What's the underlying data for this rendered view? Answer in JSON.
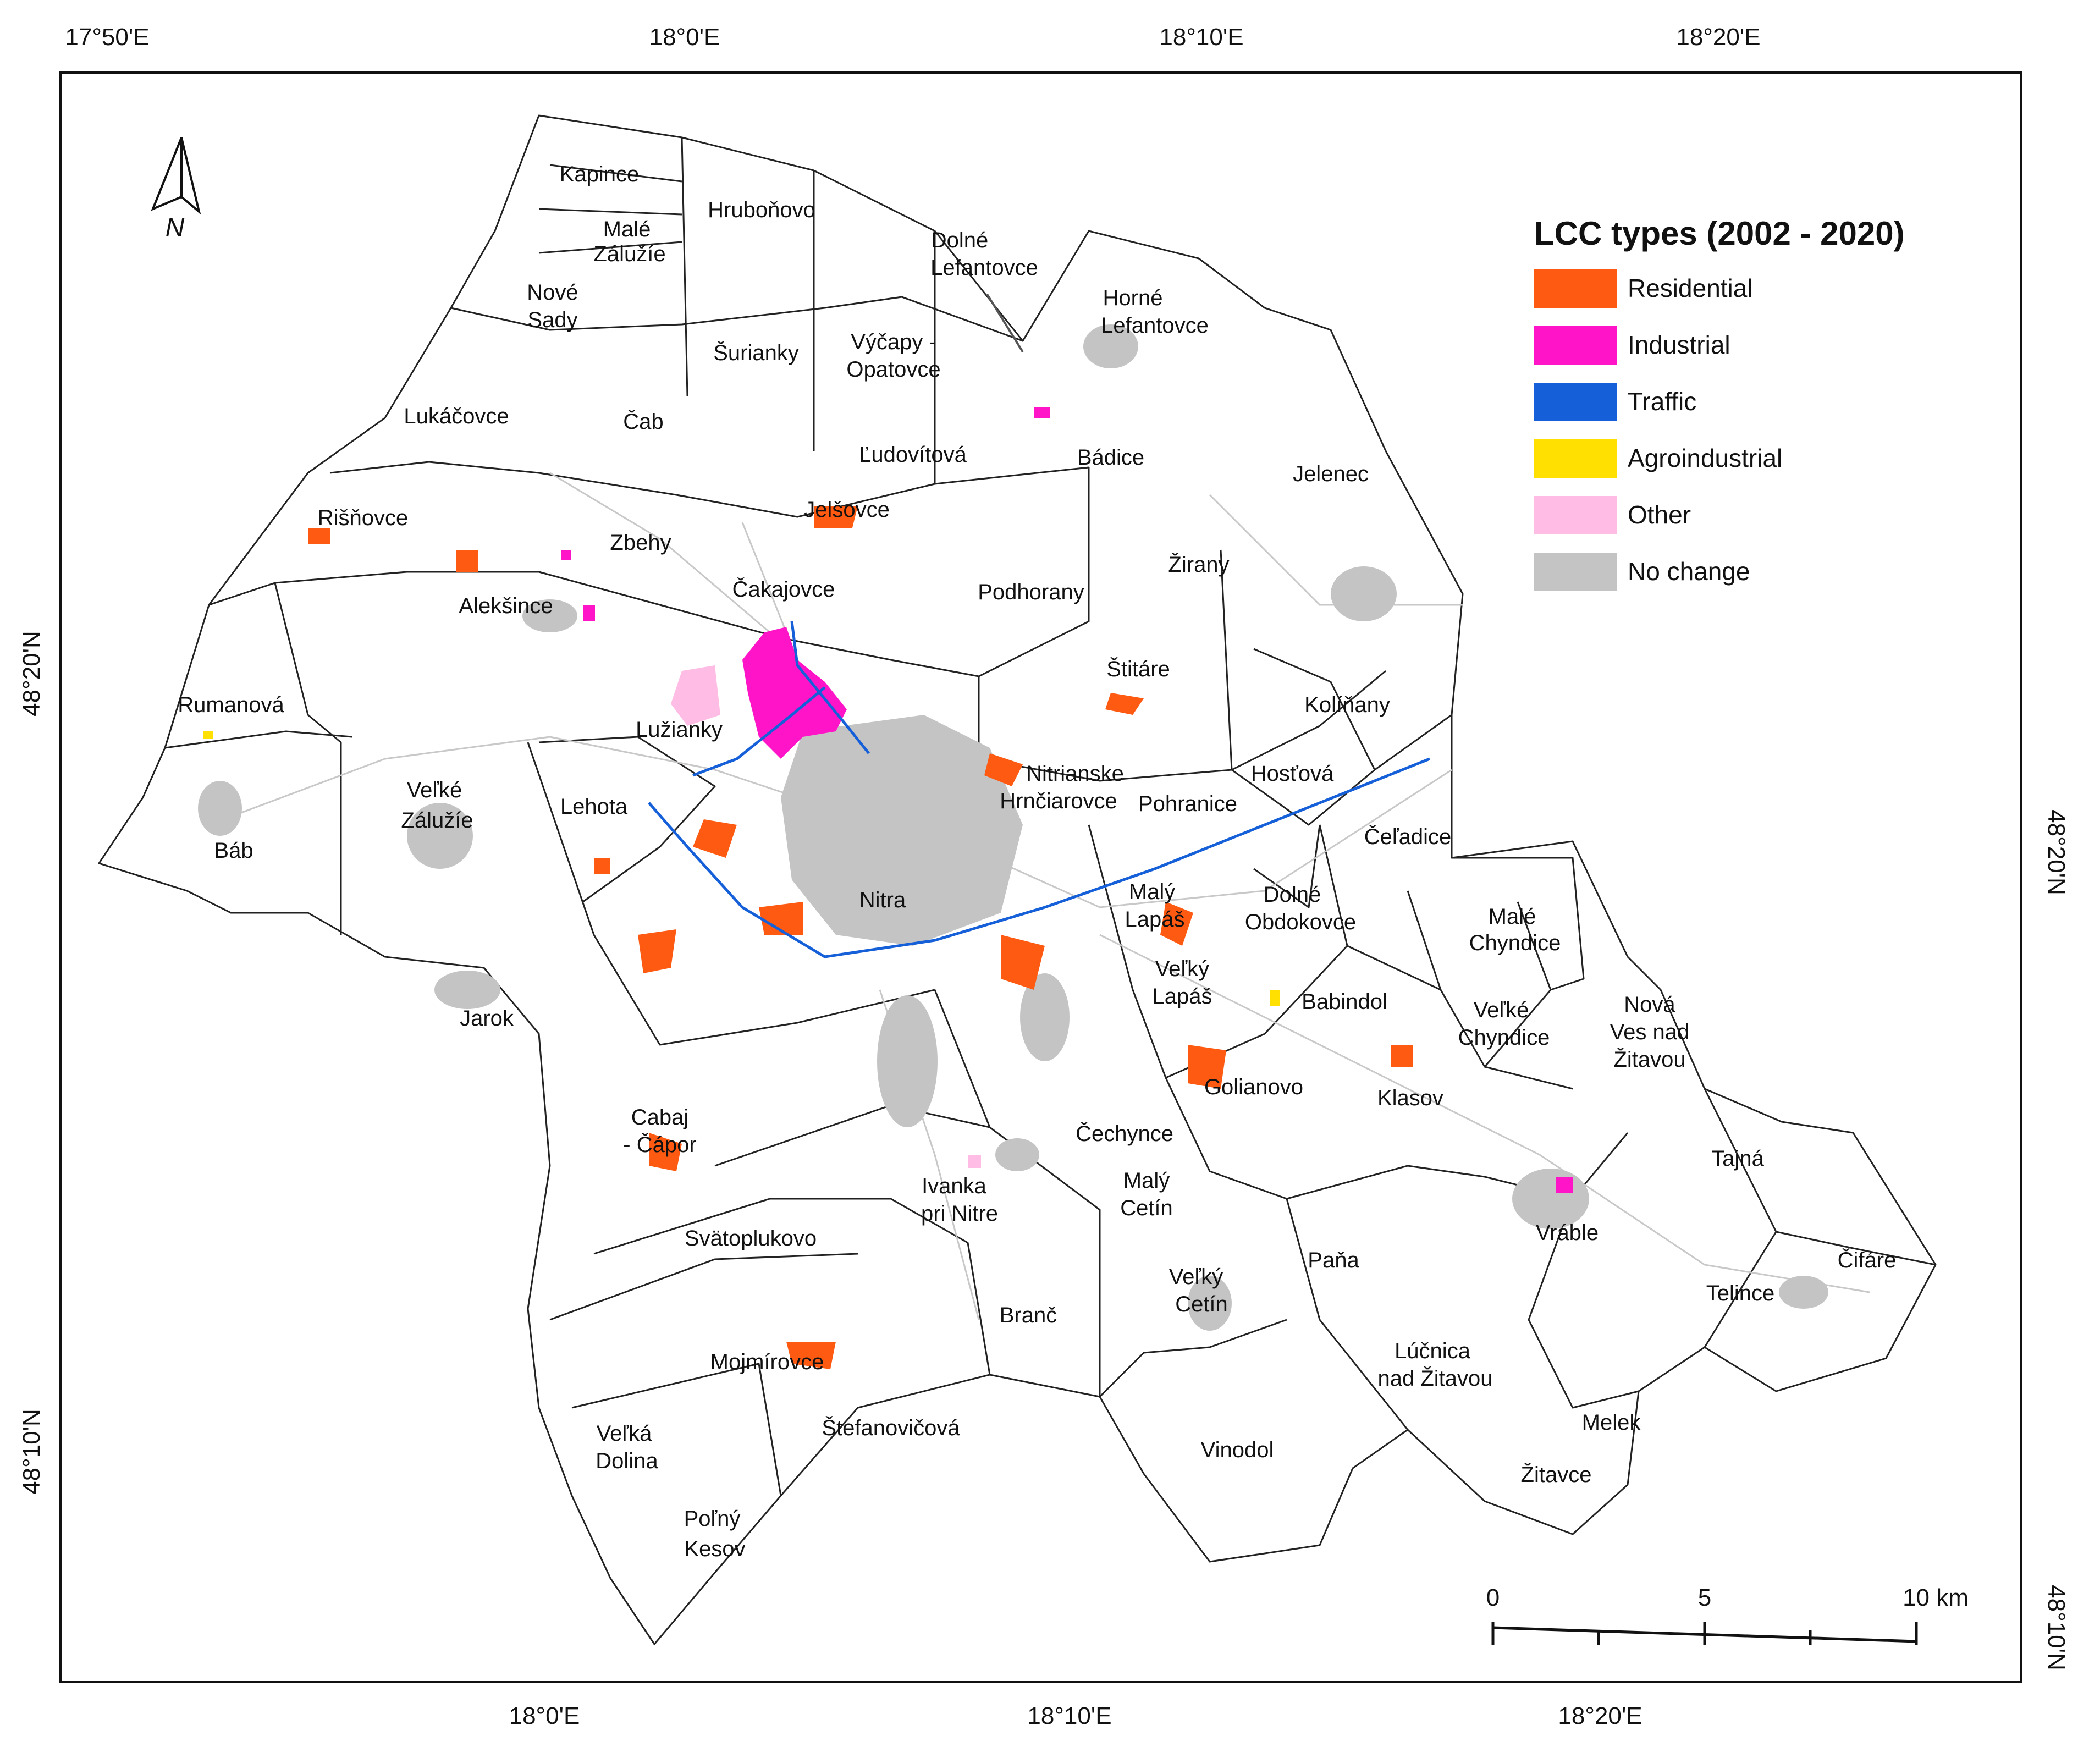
{
  "legend": {
    "title": "LCC types (2002 - 2020)",
    "items": [
      {
        "label": "Residential",
        "color": "#ff5a12"
      },
      {
        "label": "Industrial",
        "color": "#ff14c8"
      },
      {
        "label": "Traffic",
        "color": "#1560d8"
      },
      {
        "label": "Agroindustrial",
        "color": "#ffe000"
      },
      {
        "label": "Other",
        "color": "#ffbde6"
      },
      {
        "label": "No change",
        "color": "#c4c4c4"
      }
    ]
  },
  "north_arrow": {
    "label": "N"
  },
  "coords": {
    "top": [
      "17°50'E",
      "18°0'E",
      "18°10'E",
      "18°20'E"
    ],
    "bottom": [
      "18°0'E",
      "18°10'E",
      "18°20'E"
    ],
    "left": [
      "48°20'N",
      "48°10'N"
    ],
    "right": [
      "48°20'N",
      "48°10'N"
    ]
  },
  "scale": {
    "ticks": [
      "0",
      "5",
      "10 km"
    ]
  },
  "municipalities": [
    "Kapince",
    "Malé",
    "Záluží­e",
    "Hruboňovo",
    "Nové",
    "Sady",
    "Šurianky",
    "Výčapy -",
    "Opatovce",
    "Dolné",
    "Lefantovce",
    "Horné",
    "Lefantovce",
    "Lukáčovce",
    "Čab",
    "Ľudovítová",
    "Bádice",
    "Jelenec",
    "Rišňovce",
    "Jelšovce",
    "Zbehy",
    "Čakajovce",
    "Alekšince",
    "Podhorany",
    "Žirany",
    "Štitáre",
    "Rumanová",
    "Lužianky",
    "Kolíňany",
    "Nitrianske",
    "Hrnčiarovce",
    "Hosťová",
    "Veľké",
    "Záluží­e",
    "Lehota",
    "Pohranice",
    "Čeľadice",
    "Báb",
    "Nitra",
    "Malý",
    "Lapáš",
    "Dolné",
    "Obdokovce",
    "Malé",
    "Chyndice",
    "Veľký",
    "Lapáš",
    "Jarok",
    "Babindol",
    "Veľké",
    "Chyndice",
    "Nová",
    "Ves nad",
    "Žitavou",
    "Golianovo",
    "Klasov",
    "Cabaj",
    "- Čápor",
    "Čechynce",
    "Tajná",
    "Ivanka",
    "pri Nitre",
    "Malý",
    "Cetín",
    "Svätoplukovo",
    "Vráble",
    "Čifáre",
    "Paňa",
    "Veľký",
    "Cetín",
    "Telince",
    "Branč",
    "Mojmírovce",
    "Lúčnica",
    "nad Žitavou",
    "Melek",
    "Veľká",
    "Dolina",
    "Štefanovičová",
    "Vinodol",
    "Žitavce",
    "Poľný",
    "Kesov"
  ]
}
